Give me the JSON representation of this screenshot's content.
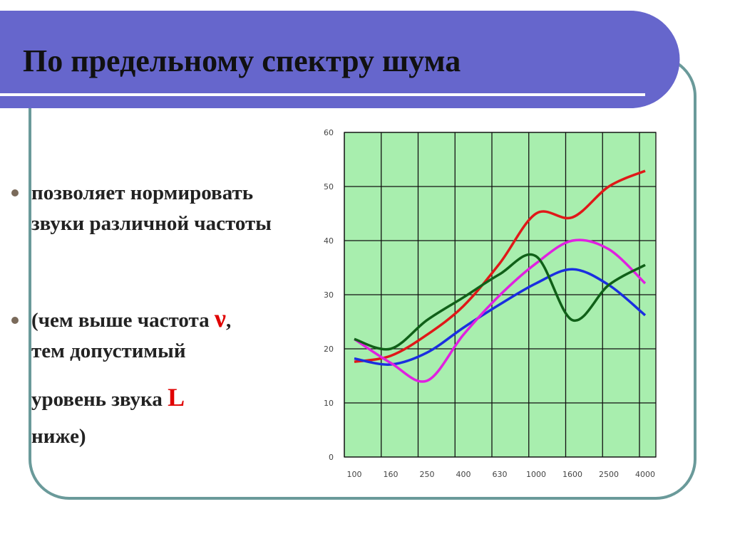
{
  "header": {
    "title": "По предельному спектру шума"
  },
  "bullets": [
    {
      "parts": [
        "позволяет нормировать звуки различной частоты"
      ]
    },
    {
      "parts": [
        "(чем выше частота ",
        "ν",
        ", тем допустимый уровень звука ",
        "L",
        " ниже)"
      ]
    }
  ],
  "chart_data": {
    "type": "line",
    "categories": [
      "100",
      "160",
      "250",
      "400",
      "630",
      "1000",
      "1600",
      "2500",
      "4000"
    ],
    "series": [
      {
        "color": "#e01818",
        "values": [
          17.6,
          18.7,
          22.6,
          27.9,
          35.8,
          45,
          44.3,
          50,
          52.9
        ]
      },
      {
        "color": "#1a2ee0",
        "values": [
          18.2,
          17.1,
          19.3,
          23.9,
          28.2,
          32.1,
          34.7,
          31.8,
          26.2
        ]
      },
      {
        "color": "#e020e0",
        "values": [
          21.8,
          17.4,
          14.1,
          22.6,
          29.9,
          35.8,
          40,
          38.4,
          32.1
        ]
      },
      {
        "color": "#106018",
        "values": [
          21.8,
          20,
          25.3,
          29.5,
          33.8,
          37.1,
          25.3,
          31.8,
          35.5
        ]
      }
    ],
    "ylim": [
      0,
      60
    ],
    "yticks": [
      0,
      10,
      20,
      30,
      40,
      50,
      60
    ],
    "grid": true
  }
}
